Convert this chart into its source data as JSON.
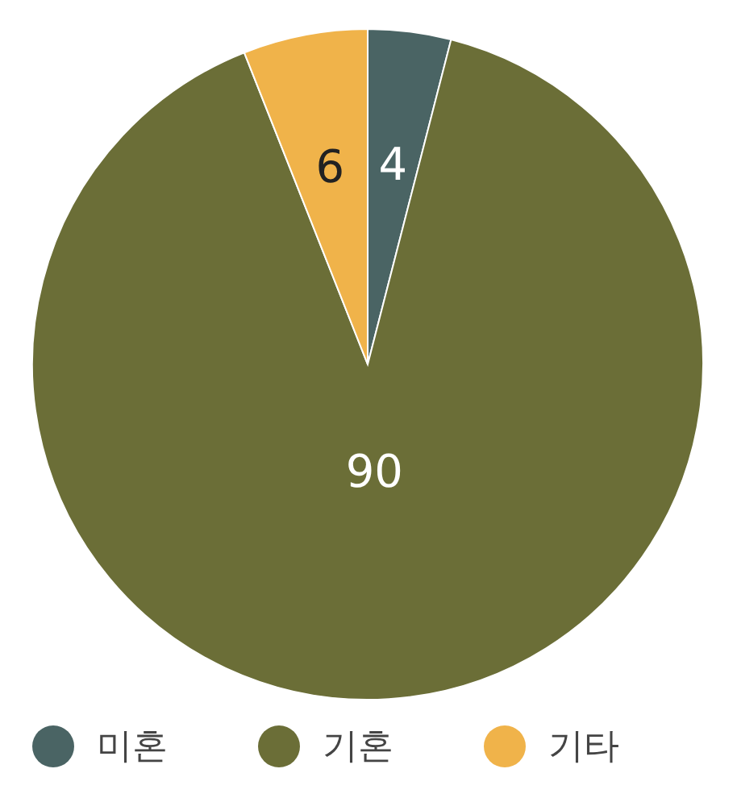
{
  "chart_data": {
    "type": "pie",
    "categories": [
      "미혼",
      "기혼",
      "기타"
    ],
    "values": [
      4,
      90,
      6
    ],
    "colors": [
      "#4a6464",
      "#6b6e37",
      "#f0b34a"
    ],
    "data_labels": true,
    "legend": "bottom"
  }
}
